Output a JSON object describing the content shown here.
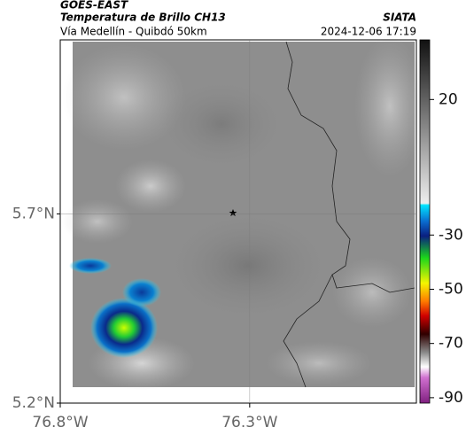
{
  "chart_data": {
    "type": "map",
    "title": "GOES-EAST",
    "subtitle": "Temperatura de Brillo CH13",
    "region": "Vía Medellín - Quibdó 50km",
    "source": "SIATA",
    "datetime": "2024-12-06 17:19",
    "xlim": [
      -76.8,
      -75.86
    ],
    "ylim": [
      5.2,
      6.16
    ],
    "xticks": [
      {
        "value": -76.8,
        "label": "76.8°W"
      },
      {
        "value": -76.3,
        "label": "76.3°W"
      }
    ],
    "yticks": [
      {
        "value": 5.2,
        "label": "5.2°N"
      },
      {
        "value": 5.7,
        "label": "5.7°N"
      }
    ],
    "grid": true,
    "colorbar": {
      "clim": [
        -92,
        42
      ],
      "ticks": [
        20,
        -30,
        -50,
        -70,
        -90
      ]
    }
  }
}
